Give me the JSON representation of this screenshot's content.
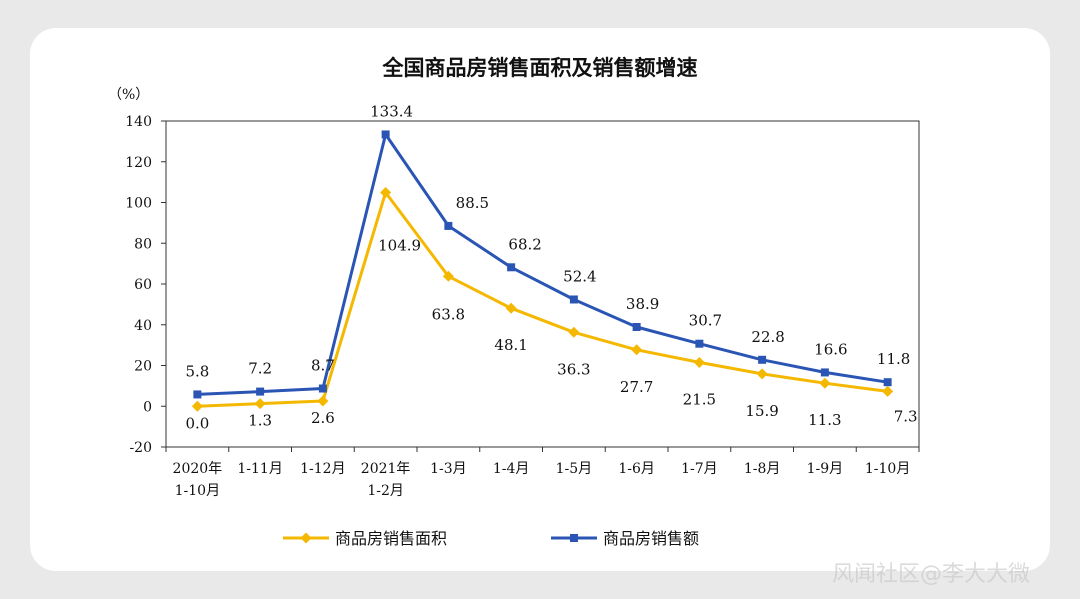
{
  "chart_data": {
    "type": "line",
    "title": "全国商品房销售面积及销售额增速",
    "ylabel": "（%）",
    "ylim": [
      -20,
      140
    ],
    "yticks": [
      140,
      120,
      100,
      80,
      60,
      40,
      20,
      0,
      -20
    ],
    "categories": [
      [
        "2020年",
        "1-10月"
      ],
      [
        "1-11月"
      ],
      [
        "1-12月"
      ],
      [
        "2021年",
        "1-2月"
      ],
      [
        "1-3月"
      ],
      [
        "1-4月"
      ],
      [
        "1-5月"
      ],
      [
        "1-6月"
      ],
      [
        "1-7月"
      ],
      [
        "1-8月"
      ],
      [
        "1-9月"
      ],
      [
        "1-10月"
      ]
    ],
    "series": [
      {
        "name": "商品房销售面积",
        "color": "#f5b800",
        "marker": "diamond",
        "values": [
          0.0,
          1.3,
          2.6,
          104.9,
          63.8,
          48.1,
          36.3,
          27.7,
          21.5,
          15.9,
          11.3,
          7.3
        ],
        "labels": [
          "0.0",
          "1.3",
          "2.6",
          "104.9",
          "63.8",
          "48.1",
          "36.3",
          "27.7",
          "21.5",
          "15.9",
          "11.3",
          "7.3"
        ]
      },
      {
        "name": "商品房销售额",
        "color": "#2b55b5",
        "marker": "square",
        "values": [
          5.8,
          7.2,
          8.7,
          133.4,
          88.5,
          68.2,
          52.4,
          38.9,
          30.7,
          22.8,
          16.6,
          11.8
        ],
        "labels": [
          "5.8",
          "7.2",
          "8.7",
          "133.4",
          "88.5",
          "68.2",
          "52.4",
          "38.9",
          "30.7",
          "22.8",
          "16.6",
          "11.8"
        ]
      }
    ],
    "legend_position": "bottom",
    "grid": false
  },
  "watermark": "风闻社区@李大大微"
}
